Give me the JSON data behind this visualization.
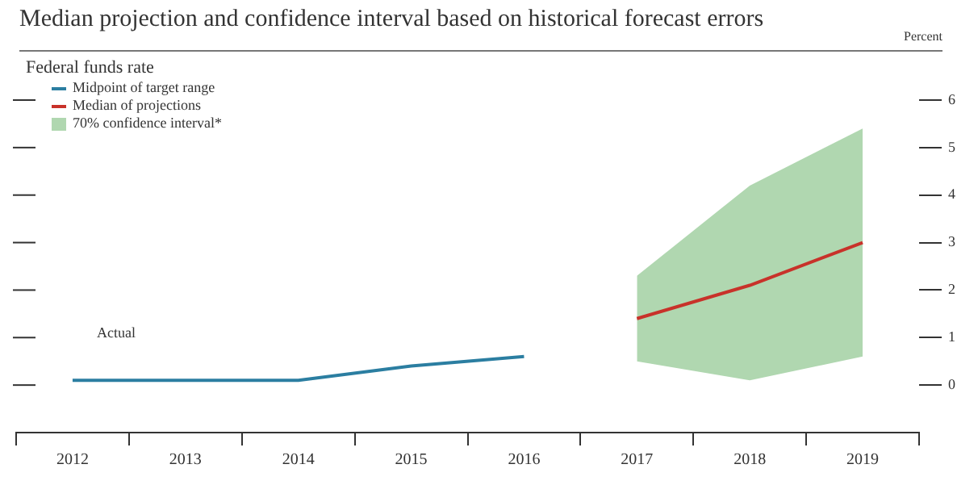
{
  "chart_data": {
    "type": "line",
    "title": "Median projection and confidence interval based on historical forecast errors",
    "ylabel": "Percent",
    "legend_title": "Federal funds rate",
    "legend": "top left",
    "grid": false,
    "categories": [
      "2012",
      "2013",
      "2014",
      "2015",
      "2016",
      "2017",
      "2018",
      "2019"
    ],
    "series": [
      {
        "name": "Midpoint of target range",
        "color": "#2b7ea1",
        "values": [
          0.1,
          0.1,
          0.1,
          0.4,
          0.6,
          null,
          null,
          null
        ]
      },
      {
        "name": "Median of projections",
        "color": "#c8322a",
        "values": [
          null,
          null,
          null,
          null,
          null,
          1.4,
          2.1,
          3.0
        ]
      },
      {
        "name": "70% confidence interval*",
        "type": "area",
        "color": "#b0d7b0",
        "values": [
          null,
          null,
          null,
          null,
          null,
          null,
          null,
          null
        ],
        "lower": [
          null,
          null,
          null,
          null,
          null,
          0.5,
          0.1,
          0.6
        ],
        "upper": [
          null,
          null,
          null,
          null,
          null,
          2.3,
          4.2,
          5.4
        ]
      }
    ],
    "ylim": [
      -1,
      6
    ],
    "yticks": [
      0,
      1,
      2,
      3,
      4,
      5,
      6
    ],
    "annotations": [
      "Actual"
    ]
  }
}
